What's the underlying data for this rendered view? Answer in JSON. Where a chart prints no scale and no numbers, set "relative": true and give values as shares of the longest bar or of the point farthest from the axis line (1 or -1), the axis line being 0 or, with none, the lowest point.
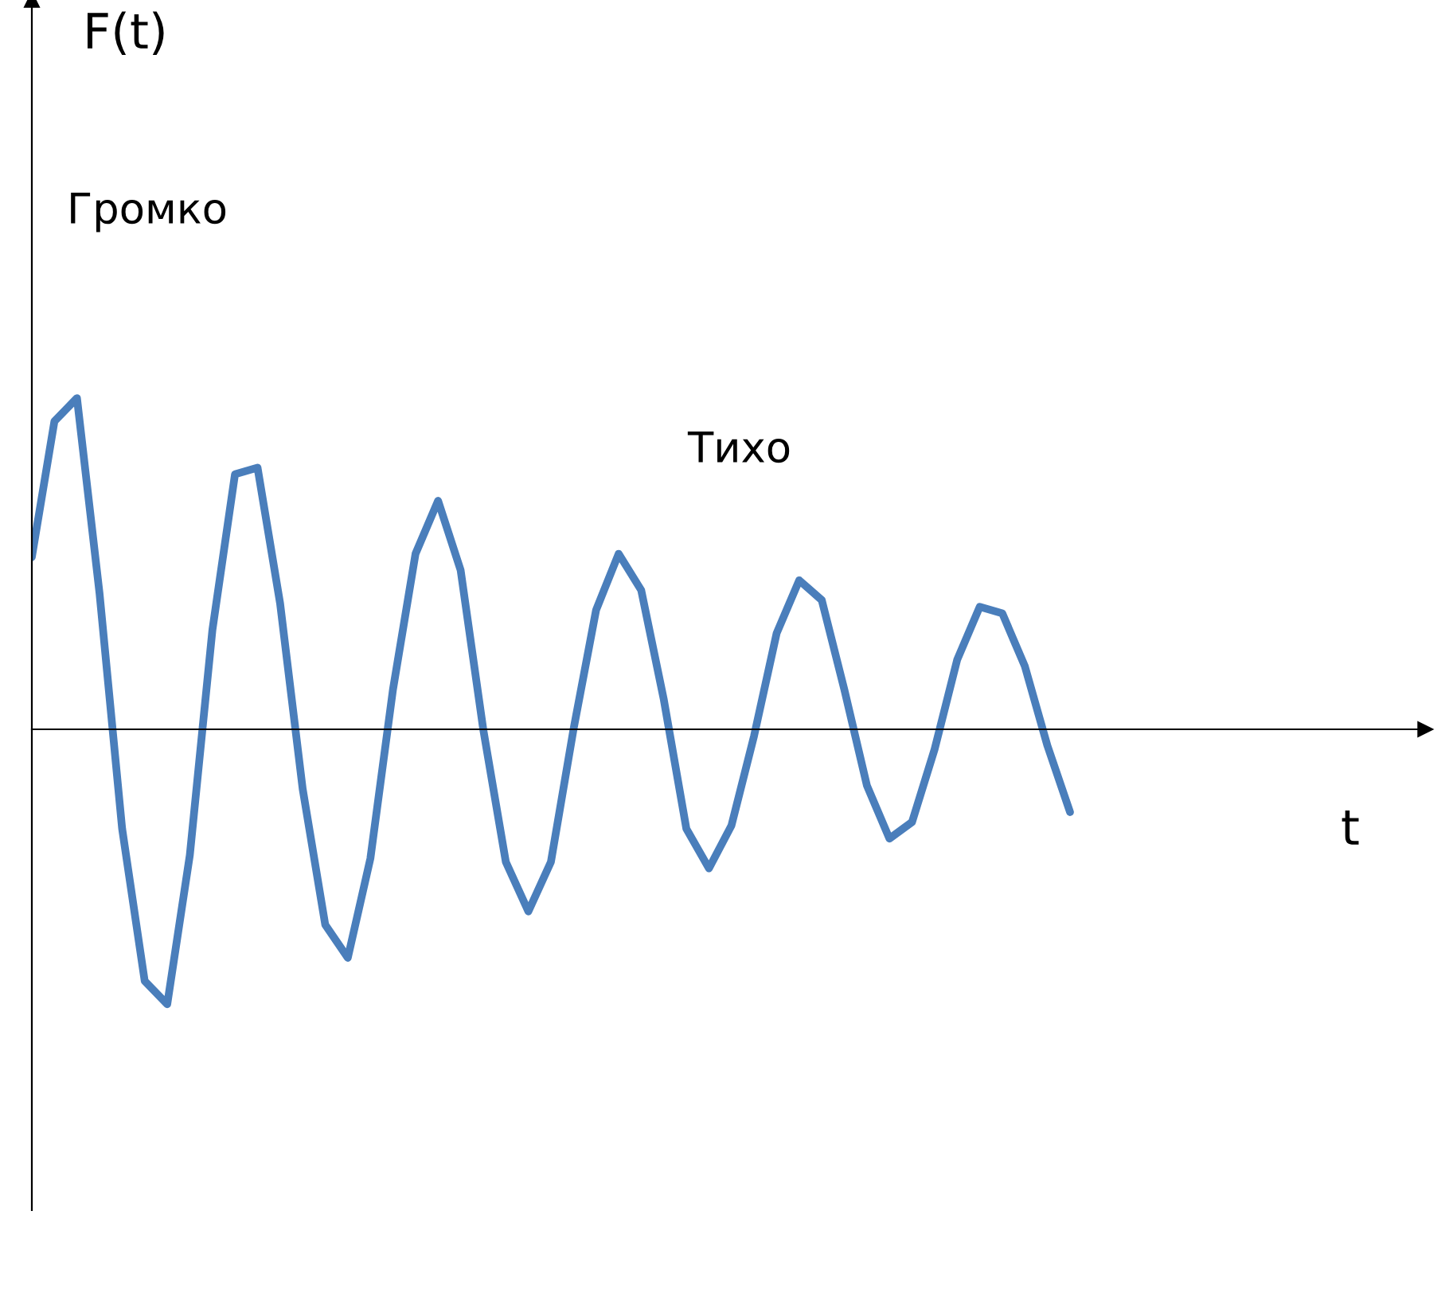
{
  "chart_data": {
    "type": "line",
    "relative": true,
    "annotations": [
      "F(t)",
      "Громко",
      "Тихо",
      "t"
    ],
    "categories": [
      null,
      null,
      null,
      null,
      null,
      null,
      null,
      null,
      null,
      null,
      null,
      null,
      null,
      null,
      null,
      null,
      null,
      null,
      null,
      null,
      null,
      null,
      null,
      null,
      null,
      null,
      null,
      null,
      null,
      null,
      null,
      null,
      null,
      null,
      null,
      null,
      null,
      null,
      null,
      null,
      null,
      null,
      null,
      null,
      null,
      null,
      null
    ],
    "series": [
      {
        "color": "#4a7ebb",
        "values": [
          0.52,
          0.93,
          1,
          0.41,
          -0.3,
          -0.76,
          -0.83,
          -0.38,
          0.3,
          0.77,
          0.79,
          0.38,
          -0.18,
          -0.59,
          -0.69,
          -0.39,
          0.12,
          0.53,
          0.69,
          0.48,
          0,
          -0.4,
          -0.55,
          -0.4,
          0,
          0.36,
          0.53,
          0.42,
          0.09,
          -0.3,
          -0.42,
          -0.29,
          -0.02,
          0.29,
          0.45,
          0.39,
          0.12,
          -0.17,
          -0.33,
          -0.28,
          -0.06,
          0.21,
          0.37,
          0.35,
          0.19,
          -0.05,
          -0.25
        ]
      }
    ]
  }
}
